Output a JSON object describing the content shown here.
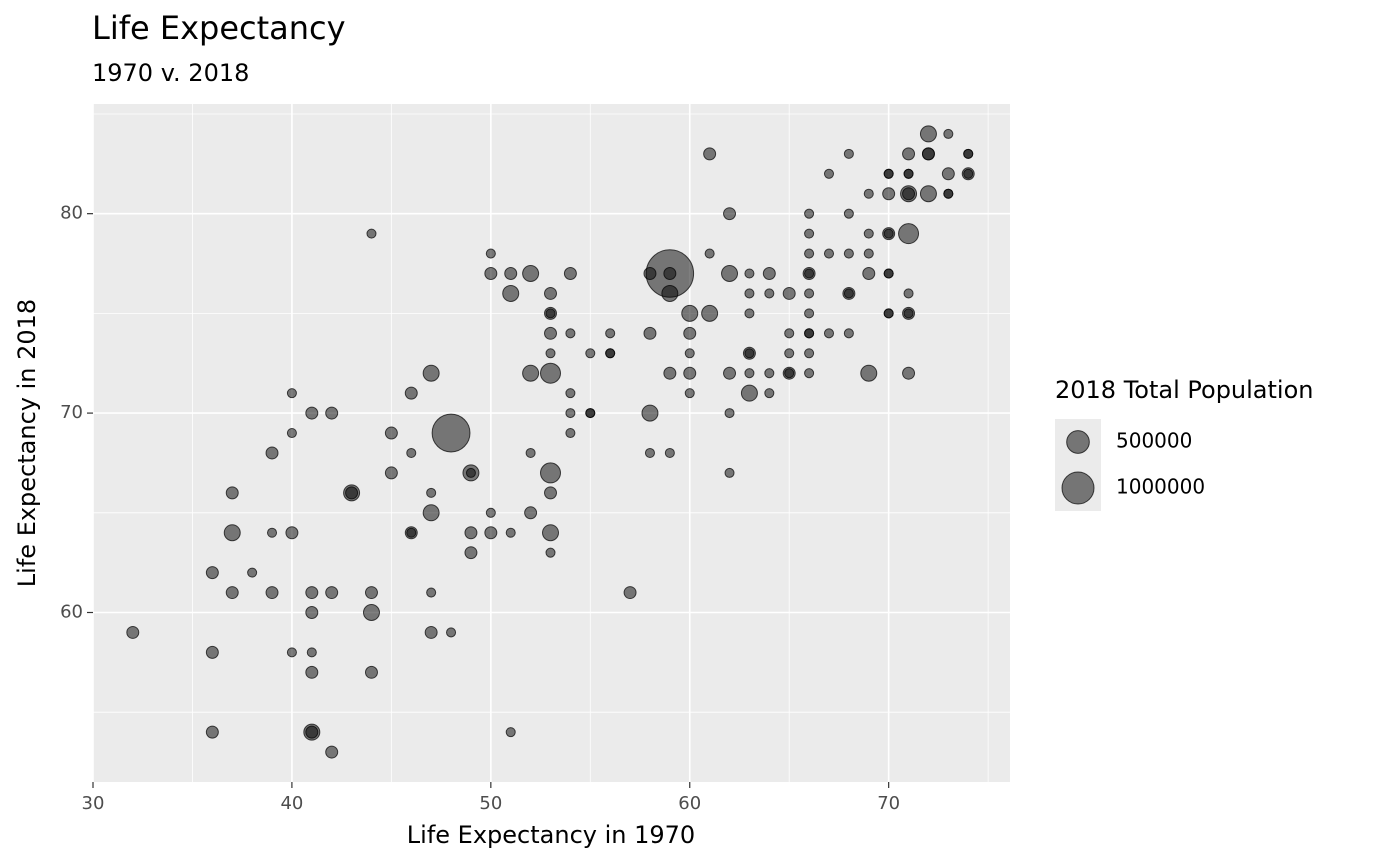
{
  "chart_data": {
    "type": "scatter",
    "title": "Life Expectancy",
    "subtitle": "1970 v. 2018",
    "x_label": "Life Expectancy in 1970",
    "y_label": "Life Expectancy in 2018",
    "xlim": [
      30,
      76.1
    ],
    "ylim": [
      51.5,
      85.5
    ],
    "xticks": [
      30,
      40,
      50,
      60,
      70
    ],
    "yticks": [
      60,
      70,
      80
    ],
    "xminor": [
      35,
      45,
      55,
      65,
      75
    ],
    "yminor": [
      55,
      65,
      75,
      85
    ],
    "grid": true,
    "color": "#000000",
    "size_legend": {
      "title": "2018 Total Population",
      "values": [
        500000,
        1000000
      ]
    },
    "x": [
      32,
      36,
      36,
      36,
      37,
      37,
      37,
      38,
      39,
      39,
      39,
      40,
      40,
      40,
      40,
      41,
      41,
      41,
      41,
      41,
      41,
      41,
      42,
      42,
      42,
      43,
      43,
      44,
      44,
      44,
      44,
      45,
      45,
      46,
      46,
      46,
      46,
      47,
      47,
      47,
      47,
      47,
      48,
      48,
      49,
      49,
      49,
      49,
      50,
      50,
      50,
      50,
      51,
      51,
      51,
      51,
      52,
      52,
      52,
      52,
      53,
      53,
      53,
      53,
      53,
      53,
      53,
      53,
      53,
      53,
      54,
      54,
      54,
      54,
      54,
      55,
      55,
      55,
      56,
      56,
      56,
      57,
      58,
      58,
      58,
      58,
      59,
      59,
      59,
      59,
      59,
      60,
      60,
      60,
      60,
      60,
      61,
      61,
      61,
      62,
      62,
      62,
      62,
      62,
      63,
      63,
      63,
      63,
      63,
      63,
      63,
      64,
      64,
      64,
      64,
      65,
      65,
      65,
      65,
      65,
      66,
      66,
      66,
      66,
      66,
      66,
      66,
      66,
      66,
      66,
      66,
      67,
      67,
      67,
      68,
      68,
      68,
      68,
      68,
      68,
      69,
      69,
      69,
      69,
      69,
      70,
      70,
      70,
      70,
      70,
      70,
      70,
      70,
      70,
      71,
      71,
      71,
      71,
      71,
      71,
      71,
      71,
      71,
      71,
      72,
      72,
      72,
      72,
      73,
      73,
      73,
      73,
      74,
      74,
      74,
      74
    ],
    "values": [
      59,
      62,
      58,
      54,
      66,
      64,
      61,
      62,
      68,
      64,
      61,
      71,
      69,
      64,
      58,
      70,
      61,
      60,
      58,
      57,
      54,
      54,
      70,
      61,
      53,
      66,
      66,
      79,
      61,
      60,
      57,
      69,
      67,
      71,
      68,
      64,
      64,
      72,
      66,
      65,
      61,
      59,
      69,
      59,
      67,
      67,
      64,
      63,
      78,
      77,
      65,
      64,
      77,
      76,
      64,
      54,
      77,
      72,
      68,
      65,
      76,
      75,
      75,
      74,
      73,
      72,
      67,
      66,
      64,
      63,
      77,
      74,
      71,
      70,
      69,
      73,
      70,
      70,
      74,
      73,
      73,
      61,
      77,
      74,
      70,
      68,
      77,
      77,
      76,
      72,
      68,
      75,
      74,
      73,
      72,
      71,
      83,
      78,
      75,
      80,
      77,
      72,
      70,
      67,
      77,
      76,
      75,
      73,
      73,
      72,
      71,
      77,
      76,
      72,
      71,
      76,
      74,
      73,
      72,
      72,
      80,
      79,
      78,
      77,
      77,
      76,
      75,
      74,
      74,
      73,
      72,
      82,
      78,
      74,
      83,
      80,
      78,
      76,
      76,
      74,
      81,
      79,
      78,
      77,
      72,
      82,
      82,
      81,
      79,
      79,
      77,
      77,
      75,
      75,
      83,
      82,
      82,
      81,
      81,
      79,
      76,
      75,
      75,
      72,
      84,
      83,
      83,
      81,
      84,
      82,
      81,
      81,
      83,
      83,
      82,
      82
    ],
    "sizes": [
      140000,
      140000,
      140000,
      140000,
      140000,
      250000,
      140000,
      80000,
      140000,
      80000,
      140000,
      80000,
      80000,
      140000,
      80000,
      140000,
      140000,
      140000,
      80000,
      140000,
      250000,
      140000,
      140000,
      140000,
      140000,
      250000,
      140000,
      80000,
      140000,
      250000,
      140000,
      140000,
      140000,
      140000,
      80000,
      140000,
      80000,
      250000,
      80000,
      250000,
      80000,
      140000,
      1400000,
      80000,
      250000,
      80000,
      140000,
      140000,
      80000,
      140000,
      80000,
      140000,
      140000,
      250000,
      80000,
      80000,
      250000,
      250000,
      80000,
      140000,
      140000,
      140000,
      80000,
      140000,
      80000,
      390000,
      390000,
      140000,
      250000,
      80000,
      140000,
      80000,
      80000,
      80000,
      80000,
      80000,
      80000,
      80000,
      80000,
      80000,
      80000,
      140000,
      140000,
      140000,
      250000,
      80000,
      2200000,
      140000,
      250000,
      140000,
      80000,
      250000,
      140000,
      80000,
      140000,
      80000,
      140000,
      80000,
      250000,
      140000,
      250000,
      140000,
      80000,
      80000,
      80000,
      80000,
      80000,
      140000,
      80000,
      80000,
      250000,
      140000,
      80000,
      80000,
      80000,
      140000,
      80000,
      80000,
      140000,
      80000,
      80000,
      80000,
      80000,
      140000,
      80000,
      80000,
      80000,
      80000,
      80000,
      80000,
      80000,
      80000,
      80000,
      80000,
      80000,
      80000,
      80000,
      140000,
      80000,
      80000,
      80000,
      80000,
      80000,
      140000,
      250000,
      80000,
      80000,
      140000,
      140000,
      80000,
      80000,
      80000,
      80000,
      80000,
      140000,
      80000,
      80000,
      250000,
      140000,
      390000,
      80000,
      140000,
      80000,
      140000,
      250000,
      140000,
      140000,
      250000,
      80000,
      140000,
      80000,
      80000,
      80000,
      80000,
      140000,
      80000
    ]
  }
}
